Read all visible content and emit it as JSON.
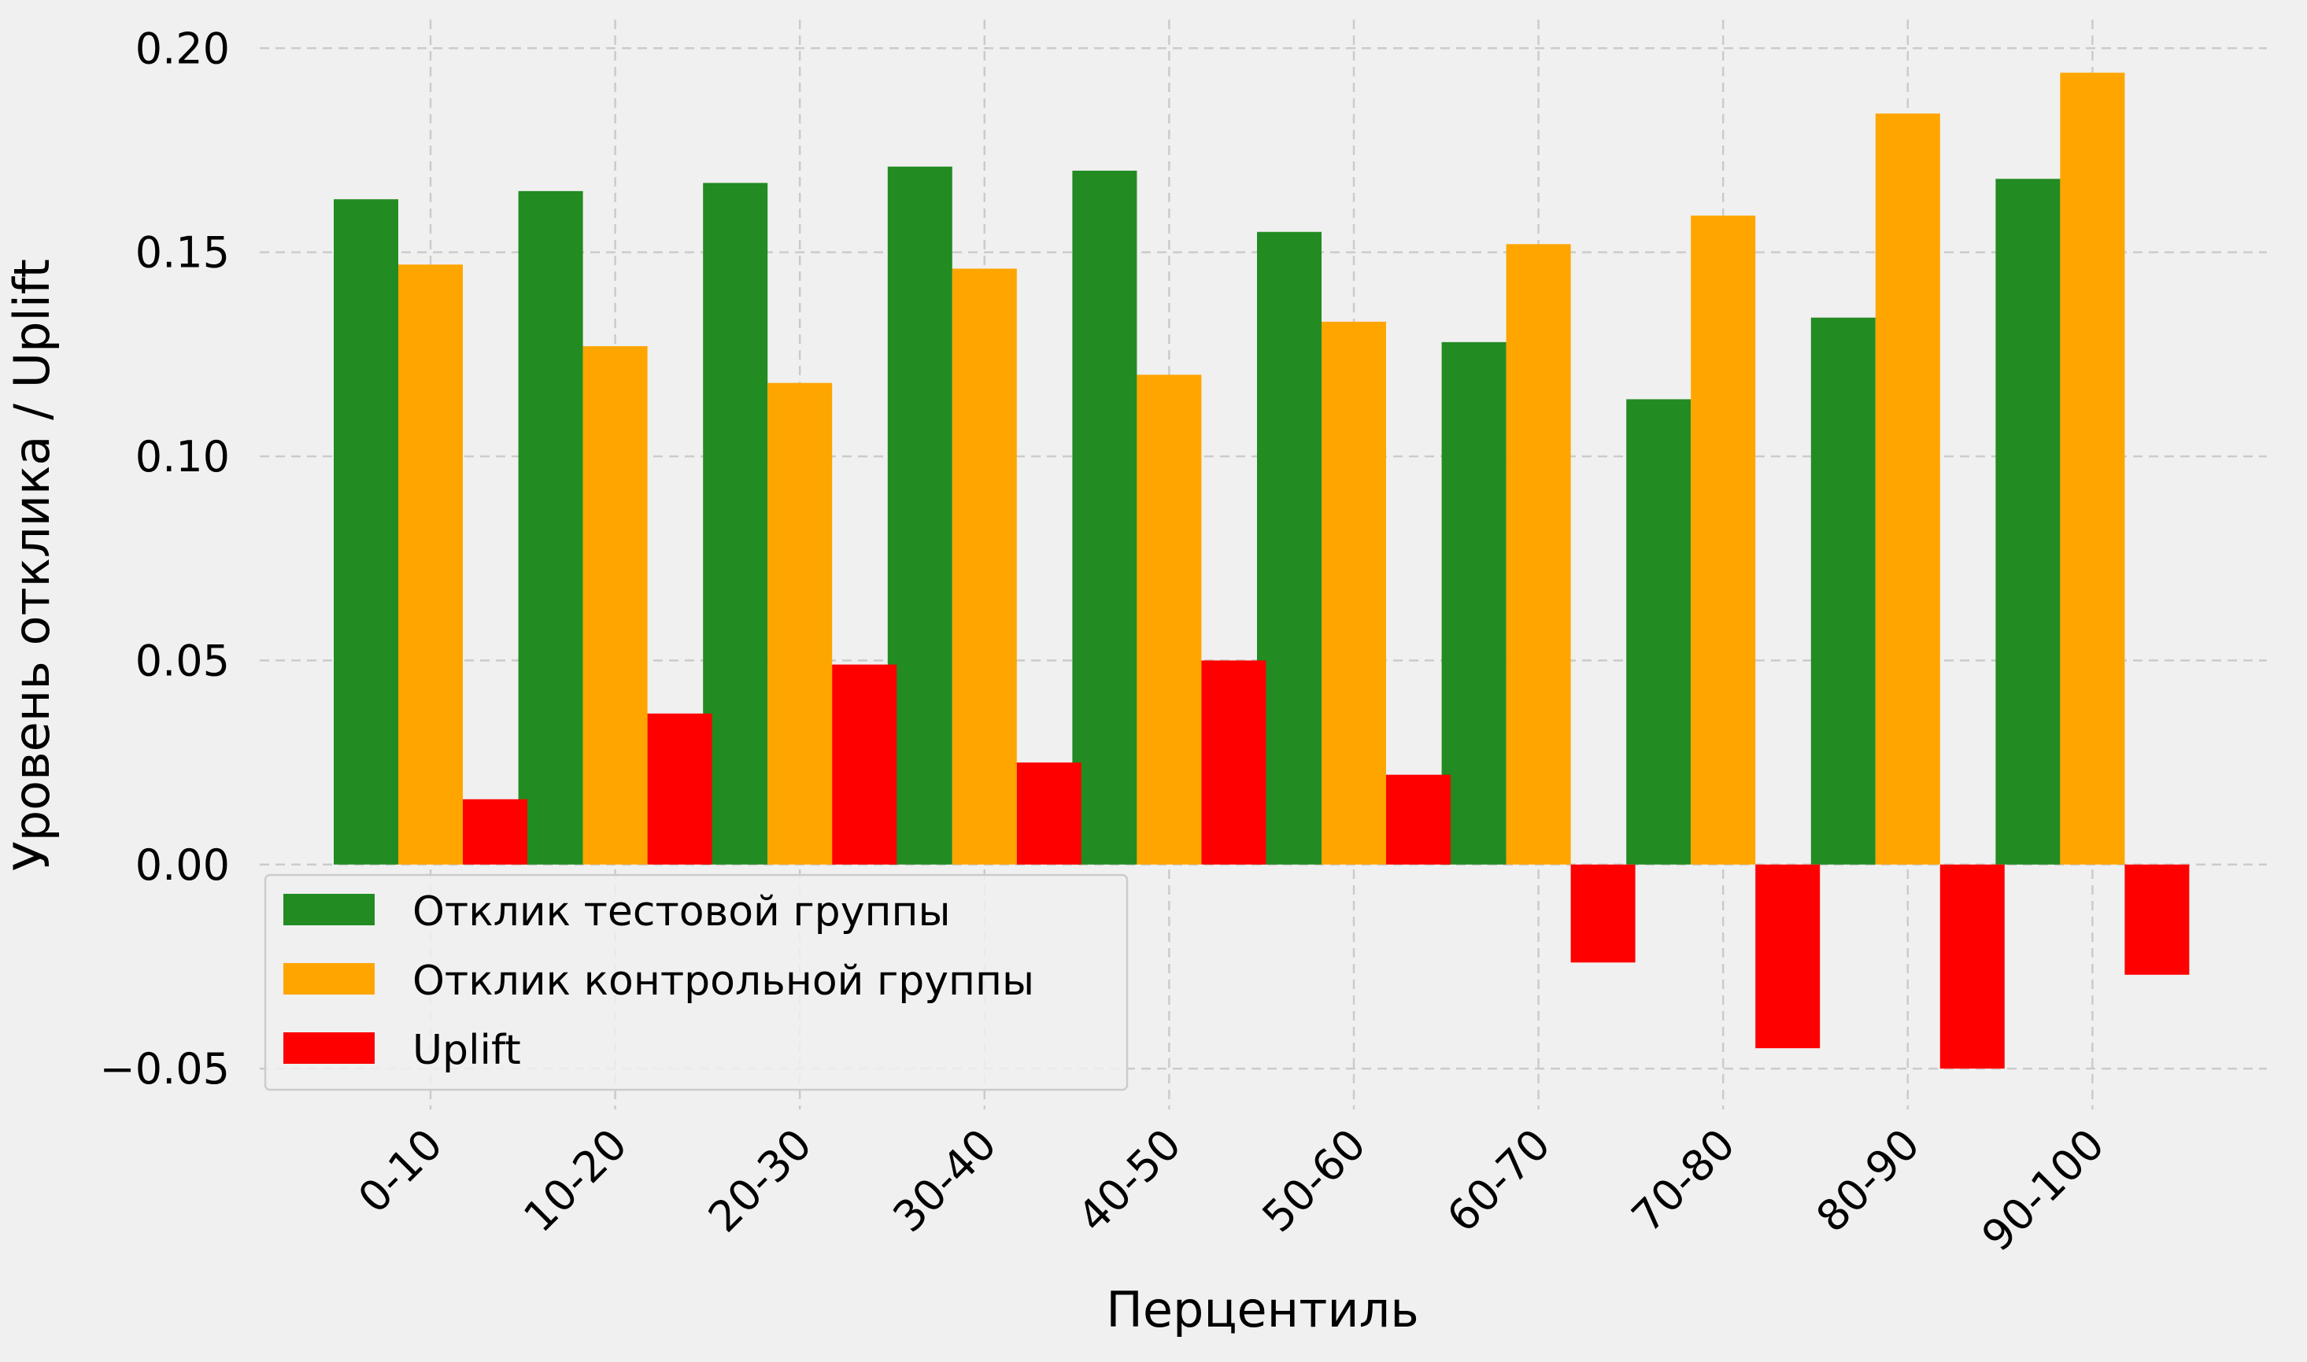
{
  "chart_data": {
    "type": "bar",
    "title": "",
    "xlabel": "Перцентиль",
    "ylabel": "Уровень отклика / Uplift",
    "categories": [
      "0-10",
      "10-20",
      "20-30",
      "30-40",
      "40-50",
      "50-60",
      "60-70",
      "70-80",
      "80-90",
      "90-100"
    ],
    "series": [
      {
        "name": "Отклик тестовой группы",
        "color": "#228b22",
        "values": [
          0.163,
          0.165,
          0.167,
          0.171,
          0.17,
          0.155,
          0.128,
          0.114,
          0.134,
          0.168
        ]
      },
      {
        "name": "Отклик контрольной группы",
        "color": "#ffa500",
        "values": [
          0.147,
          0.127,
          0.118,
          0.146,
          0.12,
          0.133,
          0.152,
          0.159,
          0.184,
          0.194
        ]
      },
      {
        "name": "Uplift",
        "color": "#ff0000",
        "values": [
          0.016,
          0.037,
          0.049,
          0.025,
          0.05,
          0.022,
          -0.024,
          -0.045,
          -0.05,
          -0.027
        ]
      }
    ],
    "ylim": [
      -0.06,
      0.207
    ],
    "yticks": [
      -0.05,
      0.0,
      0.05,
      0.1,
      0.15,
      0.2
    ],
    "ytick_labels": [
      "−0.05",
      "0.00",
      "0.05",
      "0.10",
      "0.15",
      "0.20"
    ],
    "grid": true,
    "legend_position": "lower-left"
  }
}
